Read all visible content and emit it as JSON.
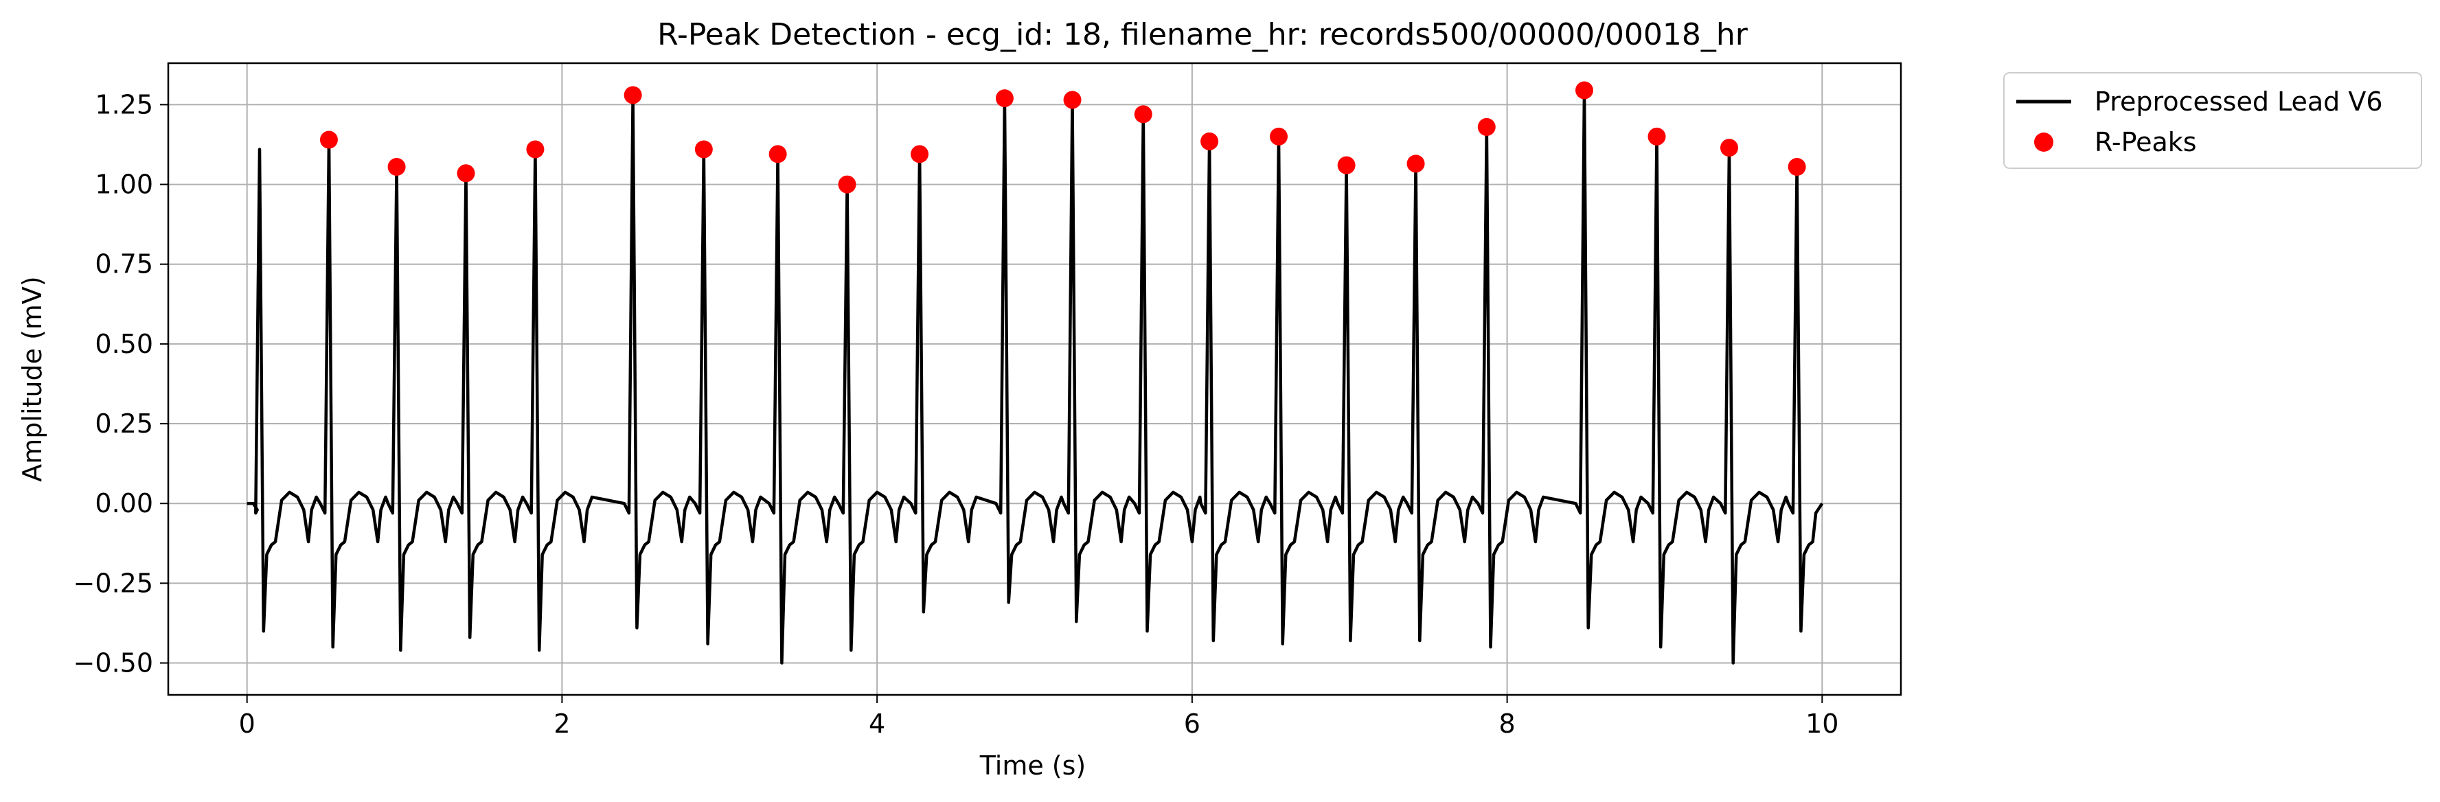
{
  "chart_data": {
    "type": "line",
    "title": "R-Peak Detection - ecg_id: 18, filename_hr: records500/00000/00018_hr",
    "xlabel": "Time (s)",
    "ylabel": "Amplitude (mV)",
    "xlim": [
      -0.5,
      10.5
    ],
    "ylim": [
      -0.6,
      1.38
    ],
    "xticks": [
      0,
      2,
      4,
      6,
      8,
      10
    ],
    "xtick_labels": [
      "0",
      "2",
      "4",
      "6",
      "8",
      "10"
    ],
    "yticks": [
      -0.5,
      -0.25,
      0.0,
      0.25,
      0.5,
      0.75,
      1.0,
      1.25
    ],
    "ytick_labels": [
      "−0.50",
      "−0.25",
      "0.00",
      "0.25",
      "0.50",
      "0.75",
      "1.00",
      "1.25"
    ],
    "grid": true,
    "legend_position": "outside-top-right",
    "series": [
      {
        "name": "Preprocessed Lead V6",
        "kind": "line",
        "color": "#000000",
        "first_beat": [
          0.08,
          1.11
        ],
        "first_s_wave": [
          0.1,
          -0.4
        ],
        "x_end": 10.0,
        "s_depths": [
          -0.45,
          -0.46,
          -0.42,
          -0.46,
          -0.39,
          -0.44,
          -0.5,
          -0.46,
          -0.34,
          -0.31,
          -0.37,
          -0.4,
          -0.43,
          -0.44,
          -0.43,
          -0.43,
          -0.45,
          -0.39,
          -0.45,
          -0.5,
          -0.4
        ]
      },
      {
        "name": "R-Peaks",
        "kind": "scatter",
        "color": "#ff0000",
        "x": [
          0.52,
          0.95,
          1.39,
          1.83,
          2.45,
          2.9,
          3.37,
          3.81,
          4.27,
          4.81,
          5.24,
          5.69,
          6.11,
          6.55,
          6.98,
          7.42,
          7.87,
          8.49,
          8.95,
          9.41,
          9.84
        ],
        "y": [
          1.14,
          1.055,
          1.035,
          1.11,
          1.28,
          1.11,
          1.095,
          1.0,
          1.095,
          1.27,
          1.265,
          1.22,
          1.135,
          1.15,
          1.06,
          1.065,
          1.18,
          1.295,
          1.15,
          1.115,
          1.055
        ]
      }
    ]
  }
}
